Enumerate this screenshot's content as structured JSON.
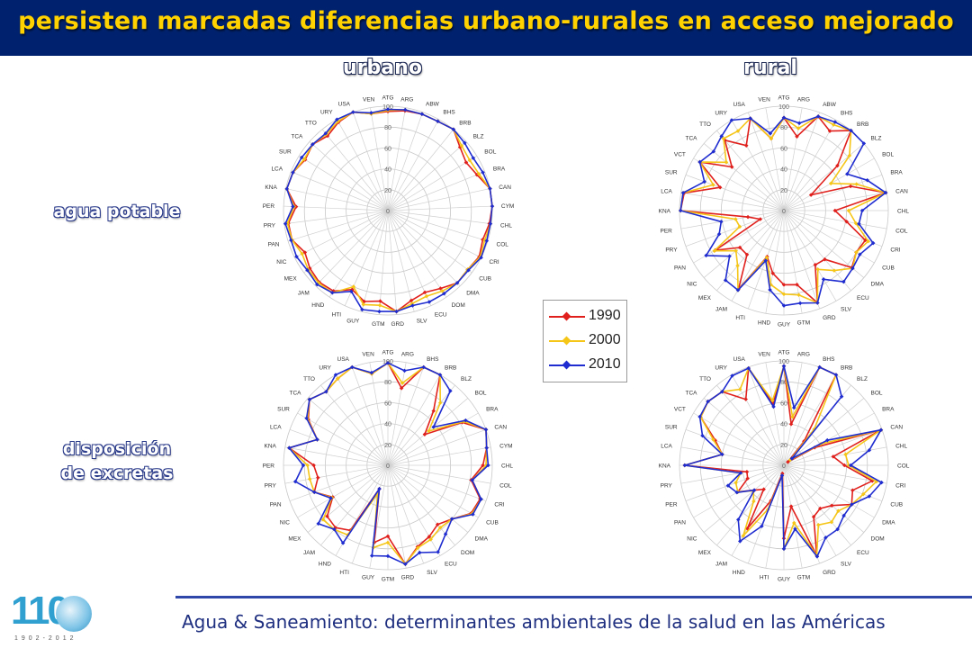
{
  "header": {
    "title": "persisten marcadas diferencias urbano-rurales en acceso mejorado"
  },
  "columns": {
    "urban": "urbano",
    "rural": "rural"
  },
  "rows": {
    "water": "agua potable",
    "sanitation_line1": "disposición",
    "sanitation_line2": "de excretas"
  },
  "footer": {
    "text": "Agua & Saneamiento: determinantes ambientales de la salud en las Américas"
  },
  "logo": {
    "number": "110",
    "years": "1902-2012"
  },
  "legend": [
    {
      "label": "1990",
      "color": "#e0201c"
    },
    {
      "label": "2000",
      "color": "#f5c518"
    },
    {
      "label": "2010",
      "color": "#1f2ccf"
    }
  ],
  "chart_data": [
    {
      "id": "urban_water",
      "type": "radar",
      "title": "agua potable — urbano",
      "rlim": [
        0,
        100
      ],
      "rticks": [
        0,
        20,
        40,
        60,
        80,
        100
      ],
      "categories": [
        "ATG",
        "ARG",
        "ABW",
        "BHS",
        "BRB",
        "BLZ",
        "BOL",
        "BRA",
        "CAN",
        "CYM",
        "CHL",
        "COL",
        "CRI",
        "CUB",
        "DMA",
        "DOM",
        "ECU",
        "SLV",
        "GRD",
        "GTM",
        "GUY",
        "HTI",
        "HND",
        "JAM",
        "MEX",
        "NIC",
        "PAN",
        "PRY",
        "PER",
        "KNA",
        "LCA",
        "SUR",
        "TCA",
        "TTO",
        "URY",
        "USA",
        "VEN"
      ],
      "series": [
        {
          "name": "1990",
          "values": [
            95,
            97,
            98,
            98,
            100,
            92,
            88,
            92,
            100,
            100,
            98,
            95,
            98,
            95,
            96,
            90,
            86,
            89,
            97,
            87,
            90,
            83,
            93,
            95,
            93,
            89,
            96,
            96,
            88,
            99,
            98,
            93,
            96,
            92,
            97,
            100,
            94
          ]
        },
        {
          "name": "2000",
          "values": [
            96,
            98,
            98,
            98,
            100,
            94,
            92,
            94,
            100,
            100,
            99,
            97,
            99,
            95,
            96,
            93,
            90,
            92,
            97,
            91,
            93,
            80,
            95,
            96,
            95,
            92,
            96,
            97,
            90,
            99,
            98,
            94,
            96,
            94,
            98,
            100,
            94
          ]
        },
        {
          "name": "2010",
          "values": [
            97,
            98,
            98,
            98,
            100,
            98,
            96,
            98,
            100,
            100,
            99,
            99,
            100,
            96,
            96,
            96,
            96,
            94,
            97,
            97,
            98,
            85,
            95,
            98,
            96,
            98,
            97,
            99,
            91,
            99,
            98,
            97,
            96,
            95,
            100,
            100,
            95
          ]
        }
      ]
    },
    {
      "id": "rural_water",
      "type": "radar",
      "title": "agua potable — rural",
      "rlim": [
        0,
        100
      ],
      "rticks": [
        0,
        20,
        40,
        60,
        80,
        100
      ],
      "categories": [
        "ATG",
        "ARG",
        "ABW",
        "BHS",
        "BRB",
        "BLZ",
        "BOL",
        "BRA",
        "CAN",
        "CHL",
        "COL",
        "CRI",
        "CUB",
        "DMA",
        "ECU",
        "SLV",
        "GRD",
        "GTM",
        "GUY",
        "HND",
        "HTI",
        "JAM",
        "MEX",
        "NIC",
        "PAN",
        "PRY",
        "PER",
        "KNA",
        "LCA",
        "SUR",
        "VCT",
        "TCA",
        "TTO",
        "URY",
        "USA",
        "VEN"
      ],
      "series": [
        {
          "name": "1990",
          "values": [
            89,
            72,
            96,
            88,
            100,
            67,
            30,
            68,
            99,
            49,
            61,
            83,
            80,
            85,
            61,
            60,
            94,
            72,
            71,
            61,
            47,
            87,
            55,
            55,
            76,
            24,
            35,
            99,
            97,
            65,
            93,
            65,
            88,
            72,
            94,
            70
          ]
        },
        {
          "name": "2000",
          "values": [
            89,
            80,
            96,
            95,
            100,
            82,
            52,
            74,
            99,
            62,
            70,
            86,
            80,
            86,
            75,
            65,
            94,
            82,
            80,
            72,
            48,
            88,
            69,
            60,
            77,
            45,
            47,
            99,
            98,
            72,
            93,
            72,
            90,
            88,
            94,
            70
          ]
        },
        {
          "name": "2010",
          "values": [
            89,
            85,
            96,
            98,
            100,
            100,
            70,
            85,
            99,
            75,
            73,
            91,
            84,
            86,
            89,
            76,
            94,
            90,
            91,
            77,
            51,
            88,
            87,
            68,
            86,
            66,
            61,
            99,
            98,
            81,
            93,
            88,
            93,
            100,
            94,
            75
          ]
        }
      ]
    },
    {
      "id": "urban_sanitation",
      "type": "radar",
      "title": "disposición de excretas — urbano",
      "rlim": [
        0,
        100
      ],
      "rticks": [
        0,
        20,
        40,
        60,
        80,
        100
      ],
      "categories": [
        "ATG",
        "ARG",
        "BHS",
        "BRB",
        "BLZ",
        "BOL",
        "BRA",
        "CAN",
        "CYM",
        "CHL",
        "COL",
        "CRI",
        "CUB",
        "DMA",
        "DOM",
        "ECU",
        "SLV",
        "GRD",
        "GTM",
        "GUY",
        "HTI",
        "HND",
        "JAM",
        "MEX",
        "NIC",
        "PAN",
        "PRY",
        "PER",
        "KNA",
        "LCA",
        "SUR",
        "TCA",
        "TTO",
        "URY",
        "USA",
        "VEN"
      ],
      "series": [
        {
          "name": "1990",
          "values": [
            98,
            75,
            100,
            100,
            68,
            46,
            82,
            100,
            96,
            91,
            81,
            94,
            92,
            80,
            74,
            79,
            83,
            96,
            68,
            75,
            24,
            72,
            78,
            76,
            61,
            75,
            68,
            71,
            96,
            72,
            88,
            98,
            92,
            96,
            100,
            89
          ]
        },
        {
          "name": "2000",
          "values": [
            98,
            80,
            100,
            100,
            78,
            51,
            84,
            100,
            96,
            94,
            82,
            95,
            93,
            80,
            78,
            82,
            84,
            96,
            74,
            80,
            29,
            77,
            80,
            81,
            62,
            75,
            76,
            77,
            96,
            72,
            89,
            98,
            92,
            96,
            100,
            89
          ]
        },
        {
          "name": "2010",
          "values": [
            98,
            92,
            100,
            100,
            93,
            57,
            86,
            100,
            96,
            96,
            82,
            95,
            94,
            80,
            86,
            96,
            89,
            96,
            87,
            88,
            24,
            86,
            80,
            87,
            63,
            75,
            90,
            81,
            96,
            72,
            90,
            98,
            92,
            100,
            100,
            90
          ]
        }
      ]
    },
    {
      "id": "rural_sanitation",
      "type": "radar",
      "title": "disposición de excretas — rural",
      "rlim": [
        0,
        100
      ],
      "rticks": [
        0,
        20,
        40,
        60,
        80,
        100
      ],
      "categories": [
        "ATG",
        "ARG",
        "BHS",
        "BRB",
        "BLZ",
        "BOL",
        "BRA",
        "CAN",
        "CHL",
        "COL",
        "CRI",
        "CUB",
        "DMA",
        "DOM",
        "ECU",
        "SLV",
        "GRD",
        "GTM",
        "GUY",
        "HTI",
        "HND",
        "JAM",
        "MEX",
        "NIC",
        "PAN",
        "PER",
        "PRY",
        "KNA",
        "LCA",
        "SUR",
        "VCT",
        "TCA",
        "TTO",
        "URY",
        "USA",
        "VEN"
      ],
      "series": [
        {
          "name": "1990",
          "values": [
            95,
            40,
            100,
            100,
            30,
            5,
            34,
            99,
            48,
            58,
            86,
            70,
            75,
            60,
            54,
            57,
            92,
            40,
            70,
            8,
            36,
            70,
            30,
            37,
            51,
            37,
            36,
            95,
            60,
            70,
            92,
            95,
            92,
            73,
            99,
            60
          ]
        },
        {
          "name": "2000",
          "values": [
            95,
            47,
            100,
            100,
            45,
            8,
            41,
            99,
            60,
            62,
            90,
            81,
            75,
            68,
            71,
            66,
            92,
            56,
            80,
            10,
            45,
            78,
            45,
            38,
            51,
            49,
            42,
            95,
            60,
            72,
            92,
            95,
            92,
            84,
            99,
            63
          ]
        },
        {
          "name": "2010",
          "values": [
            95,
            56,
            100,
            100,
            86,
            10,
            48,
            99,
            83,
            64,
            95,
            87,
            75,
            75,
            80,
            80,
            93,
            62,
            80,
            10,
            62,
            84,
            68,
            37,
            52,
            57,
            42,
            95,
            60,
            83,
            93,
            95,
            92,
            99,
            99,
            57
          ]
        }
      ]
    }
  ]
}
